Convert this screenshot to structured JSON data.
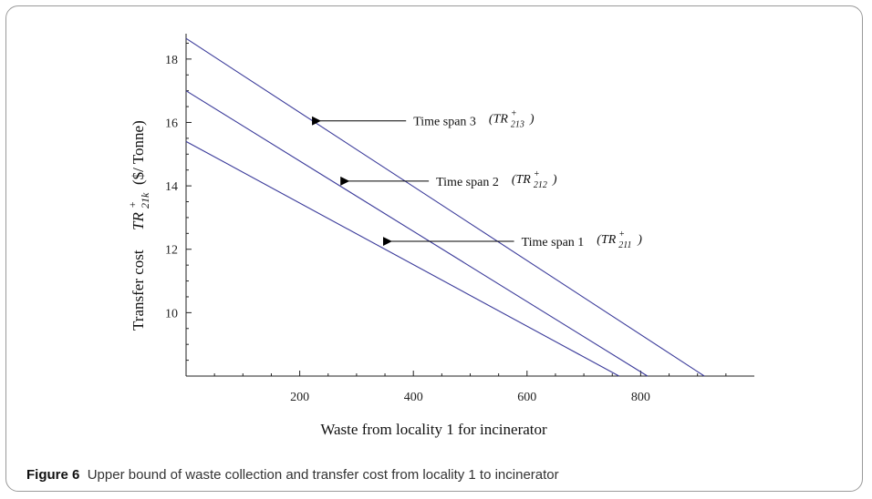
{
  "caption": {
    "label": "Figure 6",
    "text": "Upper bound of waste collection and transfer cost from locality 1 to incinerator"
  },
  "chart_data": {
    "type": "line",
    "xlabel": "Waste from locality 1 for incinerator",
    "ylabel_prefix": "Transfer cost",
    "ylabel_math": "TR",
    "ylabel_sup": "+",
    "ylabel_sub": "21k",
    "ylabel_suffix": "($/ Tonne)",
    "xlim": [
      0,
      1000
    ],
    "ylim": [
      8,
      18.8
    ],
    "x_ticks": [
      200,
      400,
      600,
      800
    ],
    "y_ticks": [
      10,
      12,
      14,
      16,
      18
    ],
    "grid": false,
    "line_color": "#3a3a9a",
    "series": [
      {
        "name": "Time span 1",
        "math": "TR",
        "sup": "+",
        "sub": "211",
        "x": [
          0,
          762
        ],
        "y": [
          15.4,
          8
        ]
      },
      {
        "name": "Time span 2",
        "math": "TR",
        "sup": "+",
        "sub": "212",
        "x": [
          0,
          812
        ],
        "y": [
          17.0,
          8
        ]
      },
      {
        "name": "Time span 3",
        "math": "TR",
        "sup": "+",
        "sub": "213",
        "x": [
          0,
          912
        ],
        "y": [
          18.65,
          8
        ]
      }
    ],
    "annotations": [
      {
        "series": 2,
        "arrow_to": [
          220,
          16.05
        ],
        "text_at": [
          400,
          16.05
        ]
      },
      {
        "series": 1,
        "arrow_to": [
          270,
          14.15
        ],
        "text_at": [
          440,
          14.15
        ]
      },
      {
        "series": 0,
        "arrow_to": [
          345,
          12.25
        ],
        "text_at": [
          590,
          12.25
        ]
      }
    ]
  }
}
